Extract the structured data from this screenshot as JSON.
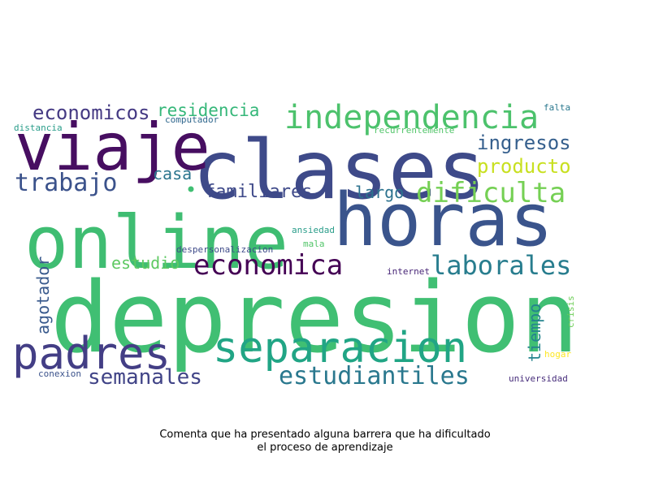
{
  "caption": {
    "line1": "Comenta que ha presentado alguna barrera que ha dificultado",
    "line2": "el proceso de aprendizaje"
  },
  "words": [
    {
      "text": "depresion",
      "color": "#40bf73"
    },
    {
      "text": "online",
      "color": "#3fbd72"
    },
    {
      "text": "horas",
      "color": "#3a548c"
    },
    {
      "text": "clases",
      "color": "#3e4a89"
    },
    {
      "text": "viaje",
      "color": "#470e61"
    },
    {
      "text": "padres",
      "color": "#433e85"
    },
    {
      "text": "separacion",
      "color": "#21a585"
    },
    {
      "text": "independencia",
      "color": "#4cc26c"
    },
    {
      "text": "economica",
      "color": "#440154"
    },
    {
      "text": "laborales",
      "color": "#287d8e"
    },
    {
      "text": "estudiantiles",
      "color": "#2a788e"
    },
    {
      "text": "semanales",
      "color": "#414487"
    },
    {
      "text": "dificulta",
      "color": "#75d054"
    },
    {
      "text": "trabajo",
      "color": "#3b528b"
    },
    {
      "text": "economicos",
      "color": "#443983"
    },
    {
      "text": "residencia",
      "color": "#35b779"
    },
    {
      "text": "ingresos",
      "color": "#355f8d"
    },
    {
      "text": "producto",
      "color": "#c8e020"
    },
    {
      "text": "familiares",
      "color": "#3e4989"
    },
    {
      "text": "largo",
      "color": "#2c728e"
    },
    {
      "text": "casa",
      "color": "#2b758e"
    },
    {
      "text": "estudio",
      "color": "#5ec962"
    },
    {
      "text": "agotador",
      "color": "#38598c"
    },
    {
      "text": "tiempo",
      "color": "#25848e"
    },
    {
      "text": "distancia",
      "color": "#2a9d8a"
    },
    {
      "text": "computador",
      "color": "#31688e"
    },
    {
      "text": "recurrentemente",
      "color": "#52c569"
    },
    {
      "text": "falta",
      "color": "#2a788e"
    },
    {
      "text": "ansiedad",
      "color": "#2a9d8a"
    },
    {
      "text": "despersonalizacion",
      "color": "#3e4a89"
    },
    {
      "text": "mala",
      "color": "#52c569"
    },
    {
      "text": "internet",
      "color": "#482677"
    },
    {
      "text": "crisis",
      "color": "#6ece58"
    },
    {
      "text": "hogar",
      "color": "#fde725"
    },
    {
      "text": "conexion",
      "color": "#3b528b"
    },
    {
      "text": "universidad",
      "color": "#472d7b"
    }
  ]
}
